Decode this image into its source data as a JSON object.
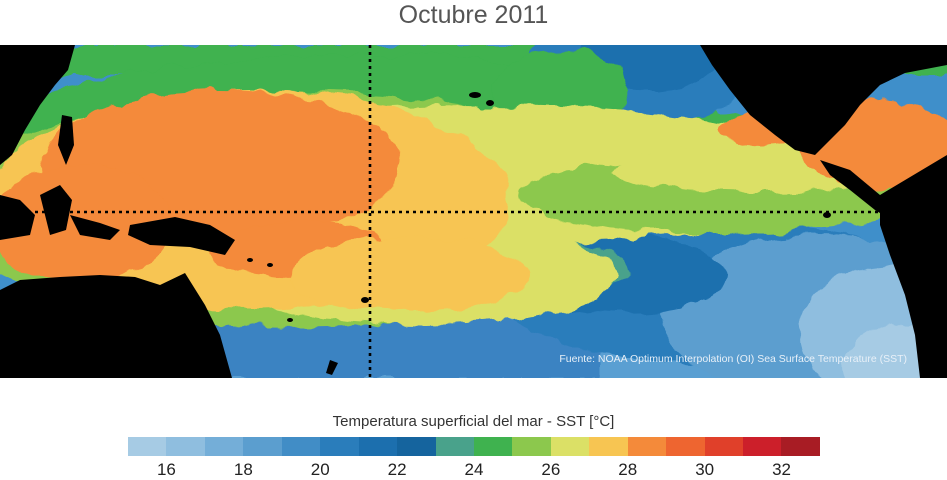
{
  "title": "Octubre 2011",
  "source_note": "Fuente: NOAA Optimum Interpolation (OI) Sea Surface Temperature (SST)",
  "colorbar": {
    "title": "Temperatura superficial del mar - SST  [°C]",
    "min": 15,
    "max": 33,
    "tick_labels": [
      "16",
      "18",
      "20",
      "22",
      "24",
      "26",
      "28",
      "30",
      "32"
    ],
    "colors": [
      "#a6cbe4",
      "#8fbedf",
      "#74aed8",
      "#5b9ecf",
      "#418dc6",
      "#2a7dbb",
      "#1c6fae",
      "#15649e",
      "#49a28b",
      "#3fb24f",
      "#8cc84d",
      "#dbe066",
      "#f7c552",
      "#f48a3a",
      "#ee6530",
      "#e0402a",
      "#cc1f2a",
      "#a81c24"
    ]
  },
  "map": {
    "region": "Pacific Ocean",
    "land_color": "#000000",
    "reference_lines": [
      "equator",
      "180 meridian"
    ]
  }
}
